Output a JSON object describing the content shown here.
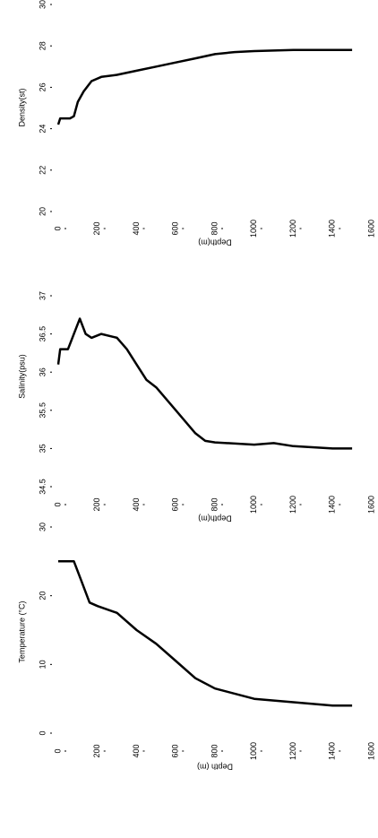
{
  "chart_data": [
    {
      "type": "line",
      "ylabel": "Density(st)",
      "xlabel": "Depth(m)",
      "x": [
        0,
        10,
        60,
        80,
        100,
        130,
        170,
        220,
        300,
        400,
        500,
        600,
        700,
        800,
        900,
        1000,
        1200,
        1500
      ],
      "values": [
        24.2,
        24.5,
        24.5,
        24.6,
        25.3,
        25.8,
        26.3,
        26.5,
        26.6,
        26.8,
        27.0,
        27.2,
        27.4,
        27.6,
        27.7,
        27.75,
        27.8,
        27.8
      ],
      "color": "#000000",
      "xlim": [
        0,
        1600
      ],
      "xticks": [
        0,
        200,
        400,
        600,
        800,
        1000,
        1200,
        1400,
        1600
      ],
      "ylim": [
        20,
        30
      ],
      "yticks": [
        20,
        22,
        24,
        26,
        28,
        30
      ]
    },
    {
      "type": "line",
      "ylabel": "Salinity(psu)",
      "xlabel": "Depth(m)",
      "x": [
        0,
        10,
        50,
        80,
        110,
        140,
        170,
        220,
        300,
        350,
        400,
        450,
        500,
        600,
        700,
        750,
        800,
        1000,
        1100,
        1200,
        1400,
        1500
      ],
      "values": [
        36.1,
        36.3,
        36.3,
        36.5,
        36.7,
        36.5,
        36.45,
        36.5,
        36.45,
        36.3,
        36.1,
        35.9,
        35.8,
        35.5,
        35.2,
        35.1,
        35.08,
        35.05,
        35.07,
        35.03,
        35.0,
        35.0
      ],
      "color": "#000000",
      "xlim": [
        0,
        1600
      ],
      "xticks": [
        0,
        200,
        400,
        600,
        800,
        1000,
        1200,
        1400,
        1600
      ],
      "ylim": [
        34.5,
        37
      ],
      "yticks": [
        34.5,
        35,
        35.5,
        36,
        36.5,
        37
      ]
    },
    {
      "type": "line",
      "ylabel": "Temperature (°C)",
      "xlabel": "Depth (m)",
      "x": [
        0,
        80,
        120,
        160,
        200,
        300,
        400,
        500,
        600,
        700,
        800,
        1000,
        1200,
        1400,
        1500
      ],
      "values": [
        25,
        25,
        22,
        19,
        18.5,
        17.5,
        15,
        13,
        10.5,
        8,
        6.5,
        5,
        4.5,
        4,
        4
      ],
      "color": "#000000",
      "xlim": [
        0,
        1600
      ],
      "xticks": [
        0,
        200,
        400,
        600,
        800,
        1000,
        1200,
        1400,
        1600
      ],
      "ylim": [
        0,
        30
      ],
      "yticks": [
        0,
        10,
        20,
        30
      ]
    }
  ]
}
